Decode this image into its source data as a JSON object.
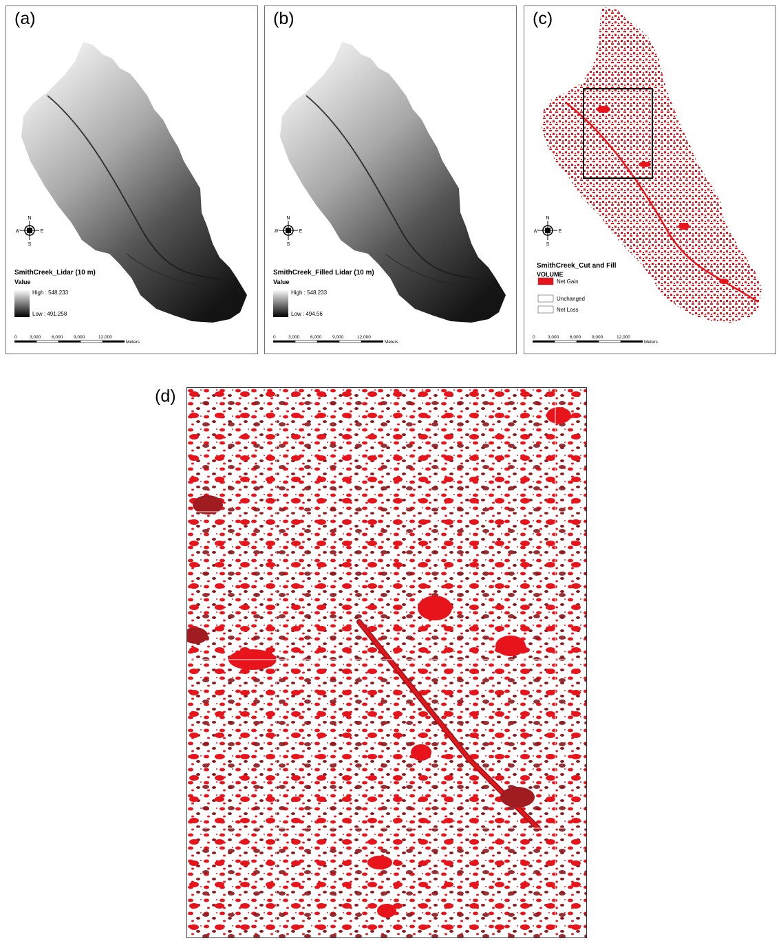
{
  "panels": {
    "a": {
      "letter": "(a)",
      "legend_title": "SmithCreek_Lidar (10 m)",
      "legend_sub": "Value",
      "high": "High : 548.233",
      "low": "Low : 491.258"
    },
    "b": {
      "letter": "(b)",
      "legend_title": "SmithCreek_Filled Lidar (10 m)",
      "legend_sub": "Value",
      "high": "High : 548.233",
      "low": "Low : 494.56"
    },
    "c": {
      "letter": "(c)",
      "legend_title": "SmithCreek_Cut and Fill",
      "legend_sub": "VOLUME",
      "classes": [
        "Net Gain",
        "Unchanged",
        "Net Loss"
      ]
    },
    "d": {
      "letter": "(d)"
    }
  },
  "compass": {
    "n": "N",
    "s": "S",
    "e": "E",
    "w": "W"
  },
  "scalebar": {
    "ticks": [
      "0",
      "3,000",
      "6,000",
      "9,000",
      "12,000"
    ],
    "unit": "Meters"
  },
  "colors": {
    "net_gain": "#e8141c",
    "deep_red": "#8a1a1e",
    "hillshade_light": "#e8e8e8",
    "hillshade_dark": "#151515"
  }
}
